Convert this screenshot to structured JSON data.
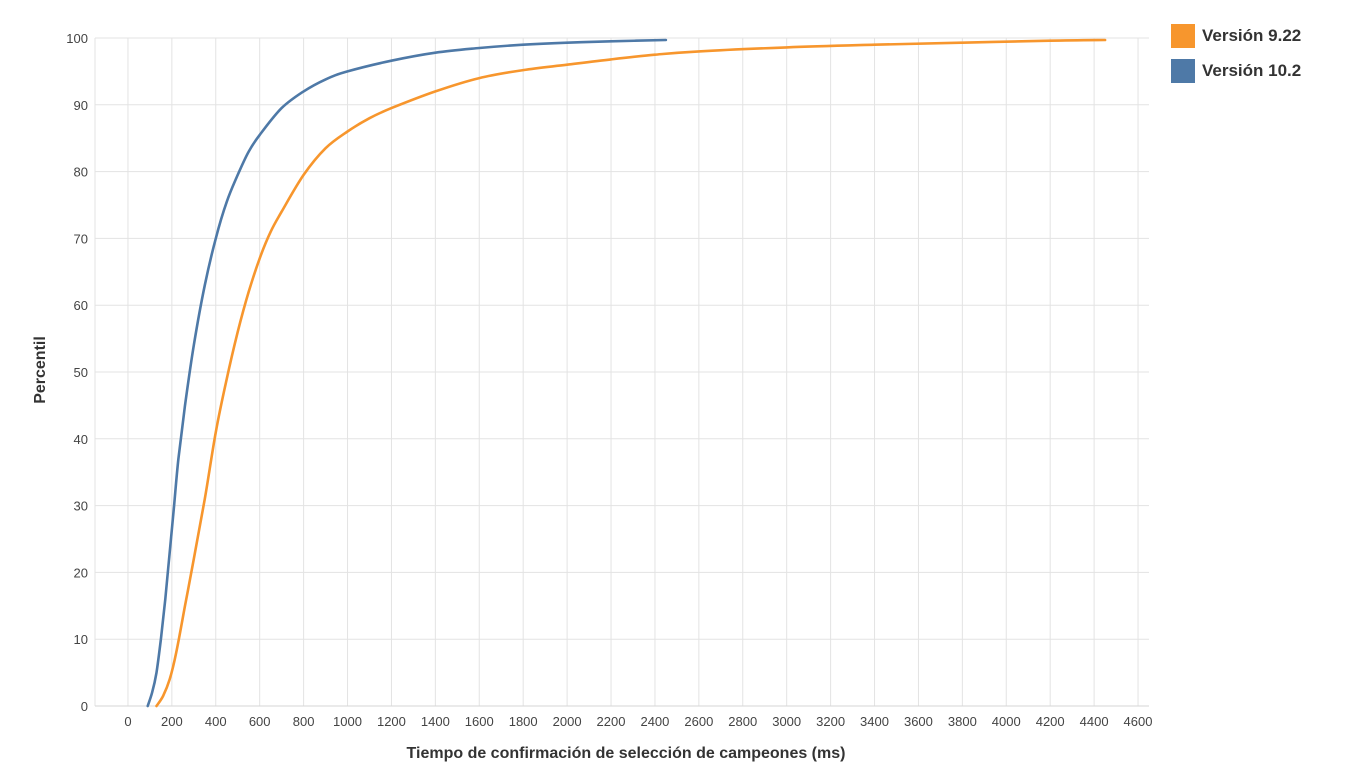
{
  "chart_data": {
    "type": "line",
    "title": "",
    "xlabel": "Tiempo de confirmación de selección de campeones (ms)",
    "ylabel": "Percentil",
    "xlim": [
      -150,
      4650
    ],
    "ylim": [
      0,
      100
    ],
    "x_ticks": [
      0,
      200,
      400,
      600,
      800,
      1000,
      1200,
      1400,
      1600,
      1800,
      2000,
      2200,
      2400,
      2600,
      2800,
      3000,
      3200,
      3400,
      3600,
      3800,
      4000,
      4200,
      4400,
      4600
    ],
    "y_ticks": [
      0,
      10,
      20,
      30,
      40,
      50,
      60,
      70,
      80,
      90,
      100
    ],
    "grid": true,
    "legend_position": "right-top",
    "series": [
      {
        "name": "Versión 9.22",
        "color": "#f7962d",
        "x": [
          130,
          160,
          190,
          220,
          260,
          300,
          350,
          400,
          450,
          500,
          550,
          600,
          650,
          700,
          800,
          900,
          1000,
          1100,
          1200,
          1400,
          1600,
          1800,
          2000,
          2200,
          2400,
          2600,
          3000,
          3400,
          3800,
          4200,
          4450
        ],
        "y": [
          0,
          1.5,
          4,
          8,
          15,
          22,
          31,
          41,
          49,
          56,
          62,
          67,
          71,
          74,
          79.5,
          83.5,
          86,
          88,
          89.5,
          92,
          94,
          95.2,
          96,
          96.8,
          97.5,
          98,
          98.6,
          99,
          99.3,
          99.6,
          99.7
        ]
      },
      {
        "name": "Versión 10.2",
        "color": "#4e79a7",
        "x": [
          90,
          110,
          130,
          150,
          170,
          190,
          210,
          230,
          260,
          300,
          350,
          400,
          450,
          500,
          550,
          600,
          700,
          800,
          900,
          1000,
          1200,
          1400,
          1600,
          1800,
          2000,
          2200,
          2450
        ],
        "y": [
          0,
          2,
          5,
          10,
          16,
          23,
          30,
          37,
          45,
          54,
          63,
          70,
          75.5,
          79.5,
          83,
          85.5,
          89.5,
          92,
          93.8,
          95,
          96.6,
          97.8,
          98.5,
          99,
          99.3,
          99.5,
          99.7
        ]
      }
    ]
  }
}
